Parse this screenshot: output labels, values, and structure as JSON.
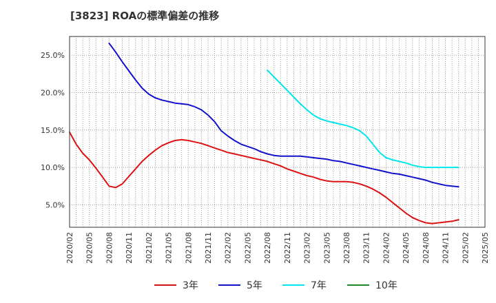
{
  "chart_data": {
    "type": "line",
    "title": "[3823]  ROAの標準偏差の推移",
    "ylim": [
      2.0,
      27.5
    ],
    "yticks": [
      5.0,
      10.0,
      15.0,
      20.0,
      25.0
    ],
    "ytick_labels": [
      "5.0%",
      "10.0%",
      "15.0%",
      "20.0%",
      "25.0%"
    ],
    "xlim": [
      "2020/02",
      "2025/05"
    ],
    "xtick_labels": [
      "2020/02",
      "2020/05",
      "2020/08",
      "2020/11",
      "2021/02",
      "2021/05",
      "2021/08",
      "2021/11",
      "2022/02",
      "2022/05",
      "2022/08",
      "2022/11",
      "2023/02",
      "2023/05",
      "2023/08",
      "2023/11",
      "2024/02",
      "2024/05",
      "2024/08",
      "2024/11",
      "2025/02",
      "2025/05"
    ],
    "grid": true,
    "legend_position": "bottom",
    "series": [
      {
        "name": "3年",
        "color": "#dd1111",
        "points": [
          [
            "2020/02",
            14.7
          ],
          [
            "2020/03",
            13.1
          ],
          [
            "2020/04",
            11.9
          ],
          [
            "2020/05",
            11.0
          ],
          [
            "2020/06",
            9.9
          ],
          [
            "2020/07",
            8.7
          ],
          [
            "2020/08",
            7.5
          ],
          [
            "2020/09",
            7.3
          ],
          [
            "2020/10",
            7.8
          ],
          [
            "2020/11",
            8.8
          ],
          [
            "2020/12",
            9.8
          ],
          [
            "2021/01",
            10.8
          ],
          [
            "2021/02",
            11.6
          ],
          [
            "2021/03",
            12.3
          ],
          [
            "2021/04",
            12.9
          ],
          [
            "2021/05",
            13.3
          ],
          [
            "2021/06",
            13.6
          ],
          [
            "2021/07",
            13.7
          ],
          [
            "2021/08",
            13.6
          ],
          [
            "2021/09",
            13.4
          ],
          [
            "2021/10",
            13.2
          ],
          [
            "2021/11",
            12.9
          ],
          [
            "2021/12",
            12.6
          ],
          [
            "2022/01",
            12.3
          ],
          [
            "2022/02",
            12.0
          ],
          [
            "2022/03",
            11.8
          ],
          [
            "2022/04",
            11.6
          ],
          [
            "2022/05",
            11.4
          ],
          [
            "2022/06",
            11.2
          ],
          [
            "2022/07",
            11.0
          ],
          [
            "2022/08",
            10.8
          ],
          [
            "2022/09",
            10.5
          ],
          [
            "2022/10",
            10.2
          ],
          [
            "2022/11",
            9.8
          ],
          [
            "2022/12",
            9.5
          ],
          [
            "2023/01",
            9.2
          ],
          [
            "2023/02",
            8.9
          ],
          [
            "2023/03",
            8.7
          ],
          [
            "2023/04",
            8.4
          ],
          [
            "2023/05",
            8.2
          ],
          [
            "2023/06",
            8.1
          ],
          [
            "2023/07",
            8.1
          ],
          [
            "2023/08",
            8.1
          ],
          [
            "2023/09",
            8.0
          ],
          [
            "2023/10",
            7.8
          ],
          [
            "2023/11",
            7.5
          ],
          [
            "2023/12",
            7.1
          ],
          [
            "2024/01",
            6.6
          ],
          [
            "2024/02",
            6.0
          ],
          [
            "2024/03",
            5.3
          ],
          [
            "2024/04",
            4.6
          ],
          [
            "2024/05",
            3.9
          ],
          [
            "2024/06",
            3.3
          ],
          [
            "2024/07",
            2.9
          ],
          [
            "2024/08",
            2.6
          ],
          [
            "2024/09",
            2.5
          ],
          [
            "2024/10",
            2.6
          ],
          [
            "2024/11",
            2.7
          ],
          [
            "2024/12",
            2.8
          ],
          [
            "2025/01",
            3.0
          ]
        ]
      },
      {
        "name": "5年",
        "color": "#1111cc",
        "points": [
          [
            "2020/08",
            26.6
          ],
          [
            "2020/09",
            25.4
          ],
          [
            "2020/10",
            24.1
          ],
          [
            "2020/11",
            22.9
          ],
          [
            "2020/12",
            21.7
          ],
          [
            "2021/01",
            20.6
          ],
          [
            "2021/02",
            19.8
          ],
          [
            "2021/03",
            19.3
          ],
          [
            "2021/04",
            19.0
          ],
          [
            "2021/05",
            18.8
          ],
          [
            "2021/06",
            18.6
          ],
          [
            "2021/07",
            18.5
          ],
          [
            "2021/08",
            18.4
          ],
          [
            "2021/09",
            18.1
          ],
          [
            "2021/10",
            17.7
          ],
          [
            "2021/11",
            17.0
          ],
          [
            "2021/12",
            16.1
          ],
          [
            "2022/01",
            14.9
          ],
          [
            "2022/02",
            14.2
          ],
          [
            "2022/03",
            13.6
          ],
          [
            "2022/04",
            13.1
          ],
          [
            "2022/05",
            12.8
          ],
          [
            "2022/06",
            12.5
          ],
          [
            "2022/07",
            12.1
          ],
          [
            "2022/08",
            11.8
          ],
          [
            "2022/09",
            11.6
          ],
          [
            "2022/10",
            11.5
          ],
          [
            "2022/11",
            11.5
          ],
          [
            "2022/12",
            11.5
          ],
          [
            "2023/01",
            11.5
          ],
          [
            "2023/02",
            11.4
          ],
          [
            "2023/03",
            11.3
          ],
          [
            "2023/04",
            11.2
          ],
          [
            "2023/05",
            11.1
          ],
          [
            "2023/06",
            10.9
          ],
          [
            "2023/07",
            10.8
          ],
          [
            "2023/08",
            10.6
          ],
          [
            "2023/09",
            10.4
          ],
          [
            "2023/10",
            10.2
          ],
          [
            "2023/11",
            10.0
          ],
          [
            "2023/12",
            9.8
          ],
          [
            "2024/01",
            9.6
          ],
          [
            "2024/02",
            9.4
          ],
          [
            "2024/03",
            9.2
          ],
          [
            "2024/04",
            9.1
          ],
          [
            "2024/05",
            8.9
          ],
          [
            "2024/06",
            8.7
          ],
          [
            "2024/07",
            8.5
          ],
          [
            "2024/08",
            8.3
          ],
          [
            "2024/09",
            8.0
          ],
          [
            "2024/10",
            7.8
          ],
          [
            "2024/11",
            7.6
          ],
          [
            "2024/12",
            7.5
          ],
          [
            "2025/01",
            7.4
          ]
        ]
      },
      {
        "name": "7年",
        "color": "#00e5ee",
        "points": [
          [
            "2022/08",
            23.0
          ],
          [
            "2022/09",
            22.1
          ],
          [
            "2022/10",
            21.2
          ],
          [
            "2022/11",
            20.3
          ],
          [
            "2022/12",
            19.4
          ],
          [
            "2023/01",
            18.5
          ],
          [
            "2023/02",
            17.7
          ],
          [
            "2023/03",
            17.0
          ],
          [
            "2023/04",
            16.5
          ],
          [
            "2023/05",
            16.2
          ],
          [
            "2023/06",
            16.0
          ],
          [
            "2023/07",
            15.8
          ],
          [
            "2023/08",
            15.6
          ],
          [
            "2023/09",
            15.3
          ],
          [
            "2023/10",
            14.9
          ],
          [
            "2023/11",
            14.2
          ],
          [
            "2023/12",
            13.1
          ],
          [
            "2024/01",
            12.0
          ],
          [
            "2024/02",
            11.3
          ],
          [
            "2024/03",
            11.0
          ],
          [
            "2024/04",
            10.8
          ],
          [
            "2024/05",
            10.6
          ],
          [
            "2024/06",
            10.3
          ],
          [
            "2024/07",
            10.1
          ],
          [
            "2024/08",
            10.0
          ],
          [
            "2024/09",
            10.0
          ],
          [
            "2024/10",
            10.0
          ],
          [
            "2024/11",
            10.0
          ],
          [
            "2024/12",
            10.0
          ],
          [
            "2025/01",
            10.0
          ]
        ]
      },
      {
        "name": "10年",
        "color": "#228822",
        "points": []
      }
    ]
  }
}
